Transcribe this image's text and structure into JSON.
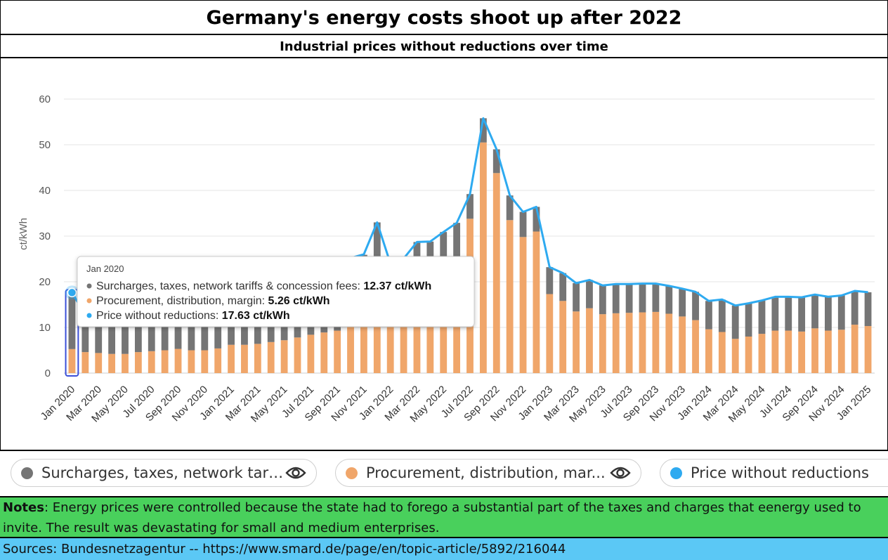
{
  "header": {
    "title": "Germany's energy costs shoot up after 2022",
    "subtitle": "Industrial prices without reductions over time"
  },
  "chart_data": {
    "type": "bar",
    "ylabel": "ct/kWh",
    "ylim": [
      0,
      60
    ],
    "yticks": [
      0,
      10,
      20,
      30,
      40,
      50,
      60
    ],
    "grid": true,
    "stacked": true,
    "categories": [
      "Jan 2020",
      "Feb 2020",
      "Mar 2020",
      "Apr 2020",
      "May 2020",
      "Jun 2020",
      "Jul 2020",
      "Aug 2020",
      "Sep 2020",
      "Oct 2020",
      "Nov 2020",
      "Dec 2020",
      "Jan 2021",
      "Feb 2021",
      "Mar 2021",
      "Apr 2021",
      "May 2021",
      "Jun 2021",
      "Jul 2021",
      "Aug 2021",
      "Sep 2021",
      "Oct 2021",
      "Nov 2021",
      "Dec 2021",
      "Jan 2022",
      "Feb 2022",
      "Mar 2022",
      "Apr 2022",
      "May 2022",
      "Jun 2022",
      "Jul 2022",
      "Aug 2022",
      "Sep 2022",
      "Oct 2022",
      "Nov 2022",
      "Dec 2022",
      "Jan 2023",
      "Feb 2023",
      "Mar 2023",
      "Apr 2023",
      "May 2023",
      "Jun 2023",
      "Jul 2023",
      "Aug 2023",
      "Sep 2023",
      "Oct 2023",
      "Nov 2023",
      "Dec 2023",
      "Jan 2024",
      "Feb 2024",
      "Mar 2024",
      "Apr 2024",
      "May 2024",
      "Jun 2024",
      "Jul 2024",
      "Aug 2024",
      "Sep 2024",
      "Oct 2024",
      "Nov 2024",
      "Dec 2024",
      "Jan 2025"
    ],
    "xtick_labels": [
      "Jan 2020",
      "Mar 2020",
      "May 2020",
      "Jul 2020",
      "Sep 2020",
      "Nov 2020",
      "Jan 2021",
      "Mar 2021",
      "May 2021",
      "Jul 2021",
      "Sep 2021",
      "Nov 2021",
      "Jan 2022",
      "Mar 2022",
      "May 2022",
      "Jul 2022",
      "Sep 2022",
      "Nov 2022",
      "Jan 2023",
      "Mar 2023",
      "May 2023",
      "Jul 2023",
      "Sep 2023",
      "Nov 2023",
      "Jan 2024",
      "Mar 2024",
      "May 2024",
      "Jul 2024",
      "Sep 2024",
      "Nov 2024",
      "Jan 2025"
    ],
    "series": [
      {
        "name": "Procurement, distribution, margin",
        "kind": "bar",
        "color": "#f0a66a",
        "values": [
          5.26,
          4.6,
          4.4,
          4.2,
          4.2,
          4.6,
          4.8,
          5.0,
          5.3,
          5.0,
          5.0,
          5.4,
          6.2,
          6.2,
          6.4,
          6.8,
          7.2,
          7.8,
          8.4,
          8.9,
          9.3,
          12.5,
          13.5,
          21.3,
          12.0,
          13.5,
          17.0,
          17.0,
          19.0,
          21.0,
          33.8,
          50.5,
          43.8,
          33.5,
          29.8,
          31.0,
          17.3,
          15.8,
          13.5,
          14.2,
          12.9,
          13.1,
          13.2,
          13.3,
          13.4,
          13.0,
          12.4,
          11.6,
          9.6,
          9.0,
          7.5,
          8.0,
          8.6,
          9.3,
          9.3,
          9.1,
          9.8,
          9.3,
          9.5,
          10.6,
          10.3
        ]
      },
      {
        "name": "Surcharges, taxes, network tariffs & concession fees",
        "kind": "bar",
        "color": "#757575",
        "values": [
          12.37,
          8.2,
          8.1,
          8.0,
          8.0,
          8.0,
          8.0,
          8.0,
          8.0,
          8.0,
          8.0,
          8.0,
          7.9,
          7.9,
          7.9,
          7.9,
          7.8,
          7.8,
          7.8,
          7.8,
          7.8,
          12.7,
          12.4,
          11.7,
          12.0,
          11.6,
          11.7,
          11.8,
          11.9,
          11.9,
          5.4,
          5.3,
          5.2,
          5.4,
          5.5,
          5.4,
          5.9,
          6.1,
          6.2,
          6.2,
          6.3,
          6.4,
          6.3,
          6.3,
          6.2,
          6.1,
          6.1,
          6.2,
          6.2,
          7.1,
          7.3,
          7.3,
          7.3,
          7.4,
          7.4,
          7.5,
          7.4,
          7.4,
          7.5,
          7.4,
          7.4
        ]
      },
      {
        "name": "Price without reductions",
        "kind": "line",
        "color": "#2eaaf0",
        "values": [
          17.63,
          12.8,
          12.5,
          12.2,
          12.2,
          12.6,
          12.8,
          13.0,
          13.3,
          13.0,
          13.0,
          13.4,
          14.1,
          14.1,
          14.3,
          14.7,
          15.0,
          15.6,
          16.2,
          16.7,
          17.1,
          25.2,
          26.0,
          33.0,
          24.0,
          25.1,
          28.7,
          28.8,
          30.9,
          32.9,
          39.2,
          55.8,
          49.0,
          38.9,
          35.3,
          36.4,
          23.2,
          21.9,
          19.7,
          20.4,
          19.2,
          19.5,
          19.5,
          19.6,
          19.6,
          19.1,
          18.5,
          17.8,
          15.8,
          16.1,
          14.8,
          15.3,
          15.9,
          16.7,
          16.7,
          16.6,
          17.2,
          16.7,
          17.0,
          18.0,
          17.7
        ]
      }
    ],
    "tooltip": {
      "date": "Jan 2020",
      "rows": [
        {
          "label": "Surcharges, taxes, network tariffs & concession fees: ",
          "value": "12.37 ct/kWh",
          "color": "#757575"
        },
        {
          "label": "Procurement, distribution, margin: ",
          "value": "5.26 ct/kWh",
          "color": "#f0a66a"
        },
        {
          "label": "Price without reductions: ",
          "value": "17.63 ct/kWh",
          "color": "#2eaaf0"
        }
      ]
    }
  },
  "legend": {
    "items": [
      {
        "label": "Surcharges, taxes, network tari...",
        "color": "#757575",
        "icon": "eye-icon"
      },
      {
        "label": "Procurement, distribution, mar...",
        "color": "#f0a66a",
        "icon": "eye-icon"
      },
      {
        "label": "Price without reductions",
        "color": "#2eaaf0"
      }
    ]
  },
  "notes": {
    "label": "Notes",
    "text": ": Energy prices were controlled because the state had to forego a substantial part of the taxes and charges that eenergy used to invite. The result was devastating for small and medium enterprises."
  },
  "sources": {
    "text": "Sources:  Bundesnetzagentur -- https://www.smard.de/page/en/topic-article/5892/216044"
  }
}
